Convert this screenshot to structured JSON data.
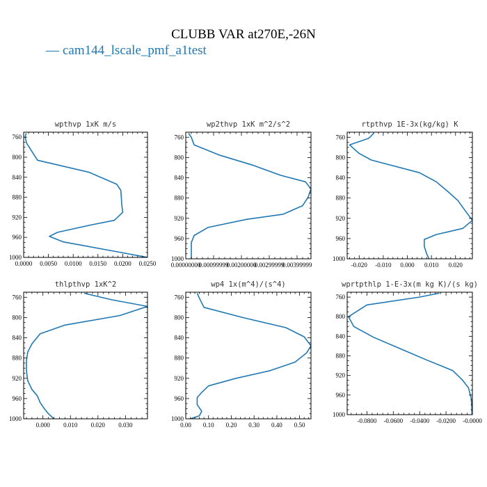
{
  "figure": {
    "title": "CLUBB VAR at270E,-26N",
    "legend": {
      "dash": "—",
      "label": "cam144_lscale_pmf_a1test"
    },
    "line_color": "#1f77b4"
  },
  "chart_data": [
    {
      "type": "line",
      "title": "wpthvp  1xK m/s",
      "xlim": [
        0.0,
        0.025
      ],
      "ylim": [
        1000,
        750
      ],
      "xticks": [
        0.0,
        0.005,
        0.01,
        0.015,
        0.02,
        0.025
      ],
      "xtick_labels": [
        "0.0000",
        "0.0050",
        "0.0100",
        "0.0150",
        "0.0200",
        "0.0250"
      ],
      "yticks": [
        760,
        800,
        840,
        880,
        920,
        960,
        1000
      ],
      "ytick_labels": [
        "760",
        "800",
        "840",
        "880",
        "920",
        "960",
        "1000"
      ],
      "series": [
        {
          "x": [
            0.0005,
            0.0003,
            0.0006,
            0.0028,
            0.0132,
            0.0188,
            0.0196,
            0.0197,
            0.0198,
            0.02,
            0.0183,
            0.0132,
            0.0068,
            0.0052,
            0.008,
            0.013,
            0.0185,
            0.025
          ],
          "y": [
            752,
            760,
            772,
            806,
            830,
            854,
            866,
            878,
            894,
            910,
            926,
            936,
            950,
            958,
            969,
            978,
            988,
            1000
          ]
        }
      ]
    },
    {
      "type": "line",
      "title": "wp2thvp  1xK m^2/s^2",
      "xlim": [
        0.0,
        0.0045
      ],
      "ylim": [
        1000,
        750
      ],
      "xticks": [
        0.0,
        0.001,
        0.002,
        0.003,
        0.004
      ],
      "xtick_labels": [
        "0.00000000",
        "0.00099999",
        "0.00200000",
        "0.00299999",
        "0.00399999"
      ],
      "yticks": [
        760,
        800,
        840,
        880,
        920,
        960,
        1000
      ],
      "ytick_labels": [
        "760",
        "800",
        "840",
        "880",
        "920",
        "960",
        "1000"
      ],
      "series": [
        {
          "x": [
            0.0001,
            0.0002,
            0.0003,
            0.0012,
            0.0024,
            0.0034,
            0.0043,
            0.0045,
            0.0044,
            0.0042,
            0.0035,
            0.0022,
            0.0008,
            0.0003,
            0.0002,
            0.0002,
            0.0002
          ],
          "y": [
            752,
            760,
            775,
            795,
            815,
            835,
            848,
            862,
            878,
            895,
            912,
            922,
            938,
            954,
            968,
            985,
            1000
          ]
        }
      ]
    },
    {
      "type": "line",
      "title": "rtpthvp  1E-3x(kg/kg) K",
      "xlim": [
        -0.025,
        0.027
      ],
      "ylim": [
        1000,
        750
      ],
      "xticks": [
        -0.02,
        -0.01,
        0.0,
        0.01,
        0.02
      ],
      "xtick_labels": [
        "-0.020",
        "-0.010",
        "0.000",
        "0.010",
        "0.020"
      ],
      "yticks": [
        760,
        800,
        840,
        880,
        920,
        960,
        1000
      ],
      "ytick_labels": [
        "760",
        "800",
        "840",
        "880",
        "920",
        "960",
        "1000"
      ],
      "series": [
        {
          "x": [
            -0.014,
            -0.016,
            -0.024,
            -0.02,
            -0.015,
            0.005,
            0.012,
            0.017,
            0.021,
            0.024,
            0.027,
            0.023,
            0.012,
            0.007,
            0.007,
            0.008,
            0.009
          ],
          "y": [
            752,
            762,
            775,
            792,
            805,
            830,
            848,
            868,
            885,
            905,
            924,
            940,
            952,
            962,
            975,
            990,
            1000
          ]
        }
      ]
    },
    {
      "type": "line",
      "title": "thlpthvp  1xK^2",
      "xlim": [
        -0.007,
        0.038
      ],
      "ylim": [
        1000,
        750
      ],
      "xticks": [
        0.0,
        0.01,
        0.02,
        0.03
      ],
      "xtick_labels": [
        "0.000",
        "0.010",
        "0.020",
        "0.030"
      ],
      "yticks": [
        760,
        800,
        840,
        880,
        920,
        960,
        1000
      ],
      "ytick_labels": [
        "760",
        "800",
        "840",
        "880",
        "920",
        "960",
        "1000"
      ],
      "series": [
        {
          "x": [
            0.015,
            0.025,
            0.038,
            0.028,
            0.008,
            -0.001,
            -0.004,
            -0.0055,
            -0.006,
            -0.006,
            -0.0055,
            -0.004,
            -0.002,
            -0.001,
            0.0005,
            0.002,
            0.004
          ],
          "y": [
            752,
            765,
            778,
            796,
            815,
            832,
            852,
            868,
            885,
            905,
            925,
            942,
            955,
            968,
            980,
            990,
            1000
          ]
        }
      ]
    },
    {
      "type": "line",
      "title": "wp4  1x(m^4)/(s^4)",
      "xlim": [
        0.0,
        0.55
      ],
      "ylim": [
        1000,
        750
      ],
      "xticks": [
        0.0,
        0.1,
        0.2,
        0.3,
        0.4,
        0.5
      ],
      "xtick_labels": [
        "0.00",
        "0.10",
        "0.20",
        "0.30",
        "0.40",
        "0.50"
      ],
      "yticks": [
        760,
        800,
        840,
        880,
        920,
        960,
        1000
      ],
      "ytick_labels": [
        "760",
        "800",
        "840",
        "880",
        "920",
        "960",
        "1000"
      ],
      "series": [
        {
          "x": [
            0.05,
            0.06,
            0.08,
            0.25,
            0.44,
            0.52,
            0.55,
            0.53,
            0.48,
            0.37,
            0.22,
            0.1,
            0.07,
            0.05,
            0.05,
            0.07,
            0.06,
            0.02
          ],
          "y": [
            752,
            762,
            780,
            800,
            820,
            838,
            856,
            870,
            888,
            905,
            920,
            935,
            948,
            958,
            972,
            985,
            994,
            1000
          ]
        }
      ]
    },
    {
      "type": "line",
      "title": "wprtpthlp  1-E-3x(m kg K)/(s kg)",
      "xlim": [
        -0.095,
        0.0
      ],
      "ylim": [
        1000,
        750
      ],
      "xticks": [
        -0.08,
        -0.06,
        -0.04,
        -0.02,
        0.0
      ],
      "xtick_labels": [
        "-0.0800",
        "-0.0600",
        "-0.0400",
        "-0.0200",
        "-0.0000"
      ],
      "yticks": [
        760,
        800,
        840,
        880,
        920,
        960,
        1000
      ],
      "ytick_labels": [
        "760",
        "800",
        "840",
        "880",
        "920",
        "960",
        "1000"
      ],
      "series": [
        {
          "x": [
            -0.025,
            -0.04,
            -0.08,
            -0.094,
            -0.09,
            -0.075,
            -0.055,
            -0.035,
            -0.015,
            -0.008,
            -0.003,
            -0.001,
            -0.0005,
            -0.0003
          ],
          "y": [
            752,
            760,
            776,
            800,
            820,
            842,
            865,
            888,
            910,
            928,
            945,
            965,
            982,
            1000
          ]
        }
      ]
    }
  ]
}
